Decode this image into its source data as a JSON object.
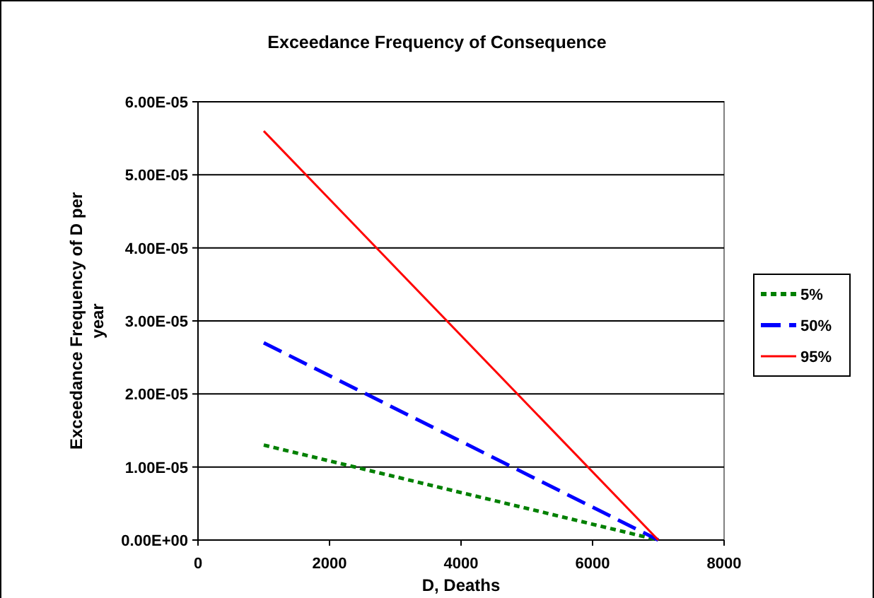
{
  "chart_data": {
    "type": "line",
    "title": "Exceedance Frequency of Consequence",
    "xlabel": "D, Deaths",
    "ylabel": "Exceedance Frequency of D per year",
    "xlim": [
      0,
      8000
    ],
    "xticks": [
      0,
      2000,
      4000,
      6000,
      8000
    ],
    "ylim": [
      0,
      6e-05
    ],
    "yticks": [
      {
        "value": 0,
        "label": "0.00E+00"
      },
      {
        "value": 1e-05,
        "label": "1.00E-05"
      },
      {
        "value": 2e-05,
        "label": "2.00E-05"
      },
      {
        "value": 3e-05,
        "label": "3.00E-05"
      },
      {
        "value": 4e-05,
        "label": "4.00E-05"
      },
      {
        "value": 5e-05,
        "label": "5.00E-05"
      },
      {
        "value": 6e-05,
        "label": "6.00E-05"
      }
    ],
    "grid": "y",
    "legend": "right",
    "marker": "none",
    "x": [
      1000,
      7000
    ],
    "series": [
      {
        "name": "5%",
        "color": "#008000",
        "line_style": "dotted",
        "values": [
          1.3e-05,
          0
        ]
      },
      {
        "name": "50%",
        "color": "#0000ff",
        "line_style": "dashed",
        "values": [
          2.7e-05,
          0
        ]
      },
      {
        "name": "95%",
        "color": "#ff0000",
        "line_style": "solid",
        "values": [
          5.6e-05,
          0
        ]
      }
    ]
  }
}
